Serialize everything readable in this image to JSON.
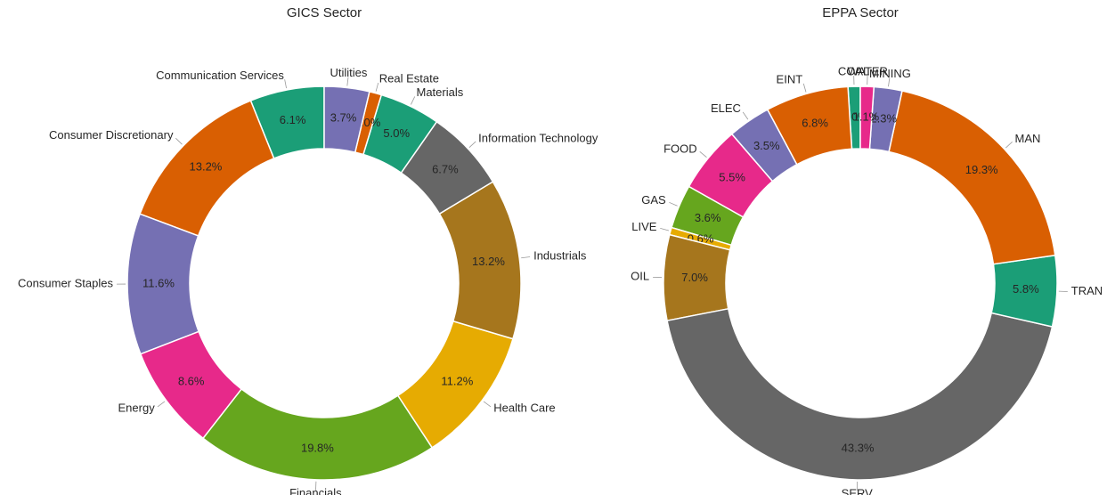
{
  "chart_data": [
    {
      "type": "pie",
      "title": "GICS Sector",
      "categories": [
        "Communication Services",
        "Consumer Discretionary",
        "Consumer Staples",
        "Energy",
        "Financials",
        "Health Care",
        "Industrials",
        "Information Technology",
        "Materials",
        "Real Estate",
        "Utilities"
      ],
      "values": [
        6.1,
        13.2,
        11.6,
        8.6,
        19.8,
        11.2,
        13.2,
        6.7,
        5.0,
        1.0,
        3.7
      ],
      "value_labels": [
        "6.1%",
        "13.2%",
        "11.6%",
        "8.6%",
        "19.8%",
        "11.2%",
        "13.2%",
        "6.7%",
        "5.0%",
        "1.0%",
        "3.7%"
      ],
      "colors": [
        "#1b9e77",
        "#d95f02",
        "#7570b3",
        "#e7298a",
        "#66a61e",
        "#e6ab02",
        "#a6761d",
        "#666666",
        "#1b9e77",
        "#d95f02",
        "#7570b3"
      ]
    },
    {
      "type": "pie",
      "title": "EPPA Sector",
      "categories": [
        "COAL",
        "EINT",
        "ELEC",
        "FOOD",
        "GAS",
        "LIVE",
        "OIL",
        "SERV",
        "TRAN",
        "MAN",
        "MINING",
        "WATER"
      ],
      "values": [
        1.0,
        6.8,
        3.5,
        5.5,
        3.6,
        0.6,
        7.0,
        43.3,
        5.8,
        19.3,
        2.3,
        1.1
      ],
      "value_labels": [
        "1.0%",
        "6.8%",
        "3.5%",
        "5.5%",
        "3.6%",
        "0.6%",
        "7.0%",
        "43.3%",
        "5.8%",
        "19.3%",
        "2.3%",
        "1.1%"
      ],
      "colors": [
        "#1b9e77",
        "#d95f02",
        "#7570b3",
        "#e7298a",
        "#66a61e",
        "#e6ab02",
        "#a6761d",
        "#666666",
        "#1b9e77",
        "#d95f02",
        "#7570b3",
        "#e7298a"
      ]
    }
  ]
}
